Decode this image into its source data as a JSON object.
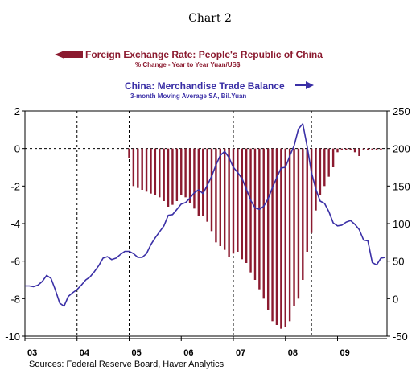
{
  "chart_data": {
    "type": "bar+line",
    "title": "Chart 2",
    "source": "Sources:  Federal Reserve Board, Haver Analytics",
    "x_labels": [
      "03",
      "04",
      "05",
      "06",
      "07",
      "08",
      "09"
    ],
    "x_range": [
      2003.0,
      2009.95
    ],
    "left_axis": {
      "ylim": [
        -10,
        2
      ],
      "ticks": [
        2,
        0,
        -2,
        -4,
        -6,
        -8,
        -10
      ]
    },
    "right_axis": {
      "ylim": [
        -50,
        250
      ],
      "ticks": [
        250,
        200,
        150,
        100,
        50,
        0,
        -50
      ]
    },
    "vertical_gridlines": [
      2004.0,
      2005.0,
      2007.0,
      2008.5
    ],
    "bar_series": {
      "name": "Foreign Exchange Rate: People's Republic of China",
      "sub": "% Change - Year to Year     Yuan/US$",
      "color": "#8b1a2f",
      "axis": "left",
      "x": [
        2005.0,
        2005.083,
        2005.167,
        2005.25,
        2005.333,
        2005.417,
        2005.5,
        2005.583,
        2005.667,
        2005.75,
        2005.833,
        2005.917,
        2006.0,
        2006.083,
        2006.167,
        2006.25,
        2006.333,
        2006.417,
        2006.5,
        2006.583,
        2006.667,
        2006.75,
        2006.833,
        2006.917,
        2007.0,
        2007.083,
        2007.167,
        2007.25,
        2007.333,
        2007.417,
        2007.5,
        2007.583,
        2007.667,
        2007.75,
        2007.833,
        2007.917,
        2008.0,
        2008.083,
        2008.167,
        2008.25,
        2008.333,
        2008.417,
        2008.5,
        2008.583,
        2008.667,
        2008.75,
        2008.833,
        2008.917,
        2009.0,
        2009.083,
        2009.167,
        2009.25,
        2009.333,
        2009.417,
        2009.5,
        2009.583,
        2009.667,
        2009.75,
        2009.833
      ],
      "values": [
        -0.5,
        -2.0,
        -2.1,
        -2.2,
        -2.3,
        -2.4,
        -2.5,
        -2.6,
        -2.8,
        -3.1,
        -3.0,
        -2.8,
        -2.5,
        -2.6,
        -2.9,
        -3.2,
        -3.6,
        -3.6,
        -3.9,
        -4.4,
        -5.0,
        -5.2,
        -5.4,
        -5.8,
        -5.6,
        -5.5,
        -5.9,
        -6.1,
        -6.6,
        -7.0,
        -7.5,
        -8.0,
        -8.6,
        -9.2,
        -9.4,
        -9.6,
        -9.5,
        -9.2,
        -8.4,
        -8.0,
        -7.0,
        -5.5,
        -4.5,
        -3.3,
        -2.5,
        -2.0,
        -1.5,
        -1.0,
        -0.2,
        -0.1,
        -0.1,
        -0.1,
        -0.2,
        -0.4,
        -0.1,
        -0.1,
        -0.1,
        -0.1,
        -0.1
      ]
    },
    "line_series": {
      "name": "China: Merchandise Trade Balance",
      "sub": "3-month Moving Average     SA, Bil.Yuan",
      "color": "#3a2fa6",
      "axis": "right",
      "x": [
        2003.0,
        2003.083,
        2003.167,
        2003.25,
        2003.333,
        2003.417,
        2003.5,
        2003.583,
        2003.667,
        2003.75,
        2003.833,
        2003.917,
        2004.0,
        2004.083,
        2004.167,
        2004.25,
        2004.333,
        2004.417,
        2004.5,
        2004.583,
        2004.667,
        2004.75,
        2004.833,
        2004.917,
        2005.0,
        2005.083,
        2005.167,
        2005.25,
        2005.333,
        2005.417,
        2005.5,
        2005.583,
        2005.667,
        2005.75,
        2005.833,
        2005.917,
        2006.0,
        2006.083,
        2006.167,
        2006.25,
        2006.333,
        2006.417,
        2006.5,
        2006.583,
        2006.667,
        2006.75,
        2006.833,
        2006.917,
        2007.0,
        2007.083,
        2007.167,
        2007.25,
        2007.333,
        2007.417,
        2007.5,
        2007.583,
        2007.667,
        2007.75,
        2007.833,
        2007.917,
        2008.0,
        2008.083,
        2008.167,
        2008.25,
        2008.333,
        2008.417,
        2008.5,
        2008.583,
        2008.667,
        2008.75,
        2008.833,
        2008.917,
        2009.0,
        2009.083,
        2009.167,
        2009.25,
        2009.333,
        2009.417,
        2009.5,
        2009.583,
        2009.667,
        2009.75,
        2009.833,
        2009.917
      ],
      "values": [
        17,
        17,
        16,
        18,
        23,
        31,
        27,
        12,
        -6,
        -10,
        3,
        8,
        12,
        18,
        25,
        29,
        36,
        44,
        54,
        56,
        52,
        54,
        59,
        63,
        63,
        60,
        55,
        55,
        60,
        72,
        81,
        89,
        97,
        111,
        112,
        119,
        126,
        128,
        134,
        141,
        145,
        140,
        151,
        163,
        178,
        191,
        196,
        188,
        175,
        168,
        160,
        146,
        131,
        121,
        119,
        123,
        133,
        148,
        161,
        174,
        175,
        190,
        204,
        226,
        233,
        203,
        168,
        146,
        130,
        127,
        116,
        101,
        97,
        98,
        102,
        104,
        99,
        92,
        78,
        77,
        48,
        45,
        54,
        55
      ]
    }
  }
}
